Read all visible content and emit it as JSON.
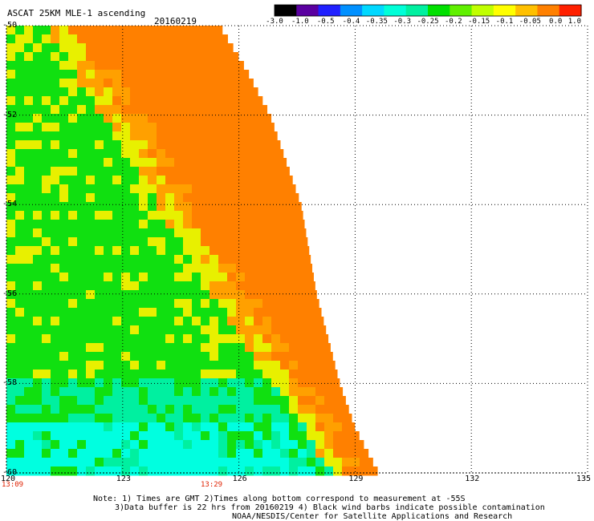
{
  "header": {
    "product": "ASCAT 25KM MLE-1 ascending",
    "date": "20160219"
  },
  "colorbar": {
    "labels": [
      "-3.0",
      "-1.0",
      "-0.5",
      "-0.4",
      "-0.35",
      "-0.3",
      "-0.25",
      "-0.2",
      "-0.15",
      "-0.1",
      "-0.05",
      "0.0",
      "1.0"
    ],
    "colors": [
      "#000000",
      "#5a00a0",
      "#2020ff",
      "#0090ff",
      "#00d8ff",
      "#00ffd8",
      "#00f0a0",
      "#00e000",
      "#60f000",
      "#c0ff00",
      "#ffff00",
      "#ffc000",
      "#ff8000",
      "#ff2000"
    ]
  },
  "map": {
    "lon_range": [
      120,
      135
    ],
    "lat_range": [
      -50,
      -60
    ],
    "lon_ticks": [
      "120",
      "123",
      "126",
      "129",
      "132",
      "135"
    ],
    "lat_ticks": [
      "-50",
      "-52",
      "-54",
      "-56",
      "-58",
      "-60"
    ],
    "time_labels": [
      "13:09",
      "13:29"
    ],
    "time_color": "#e02000",
    "swath_edge": [
      [
        -50.0,
        125.5
      ],
      [
        -51.0,
        126.2
      ],
      [
        -52.0,
        126.8
      ],
      [
        -53.0,
        127.2
      ],
      [
        -54.0,
        127.6
      ],
      [
        -55.0,
        127.8
      ],
      [
        -56.0,
        128.0
      ],
      [
        -57.0,
        128.3
      ],
      [
        -58.0,
        128.6
      ],
      [
        -59.0,
        129.0
      ],
      [
        -60.0,
        129.6
      ]
    ],
    "field_colors": {
      "orange": "#ff8000",
      "light_orange": "#ffa000",
      "yellow": "#e8f000",
      "green": "#10e010",
      "teal": "#00f0a0",
      "cyan": "#00ffe0"
    }
  },
  "notes": [
    "Note: 1) Times are GMT 2)Times along bottom correspond to measurement at -55S",
    "3)Data buffer is 22 hrs from 20160219 4) Black wind barbs indicate possible contamination",
    "NOAA/NESDIS/Center for Satellite Applications and Research"
  ]
}
